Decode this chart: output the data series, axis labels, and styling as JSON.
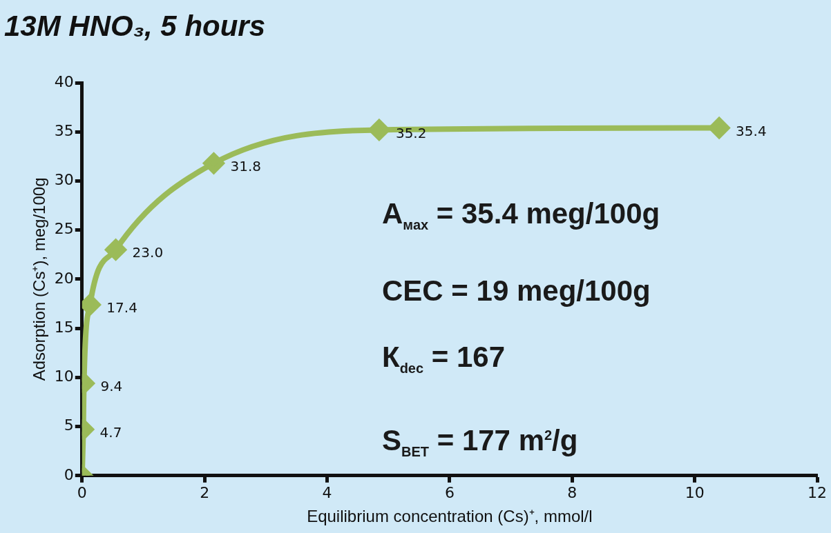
{
  "chart_data": {
    "type": "line",
    "title": "13M HNO₃, 5 hours",
    "xlabel": "Equilibrium concentration (Cs)⁺, mmol/l",
    "ylabel": "Adsorption (Cs⁺), meg/100g",
    "x": [
      0,
      0.02,
      0.03,
      0.13,
      0.55,
      2.15,
      4.85,
      10.4
    ],
    "series": [
      {
        "color": "#9bbb59",
        "values": [
          0,
          4.7,
          9.4,
          17.4,
          23.0,
          31.8,
          35.2,
          35.4
        ],
        "value_labels": [
          null,
          "4.7",
          "9.4",
          "17.4",
          "23.0",
          "31.8",
          "35.2",
          "35.4"
        ]
      }
    ],
    "xlim": [
      0,
      12
    ],
    "xticks": [
      0,
      2,
      4,
      6,
      8,
      10,
      12
    ],
    "ylim": [
      0,
      40
    ],
    "yticks": [
      0,
      5,
      10,
      15,
      20,
      25,
      30,
      35,
      40
    ],
    "grid": false,
    "marker": "diamond",
    "line_style": "solid",
    "annotations": [
      "A$_{мах}$ = 35.4 meg/100g",
      "CEC = 19 meg/100g",
      "К$_{dec}$ = 167",
      "S$_{BET}$ = 177 m$^{2}$/g"
    ]
  }
}
